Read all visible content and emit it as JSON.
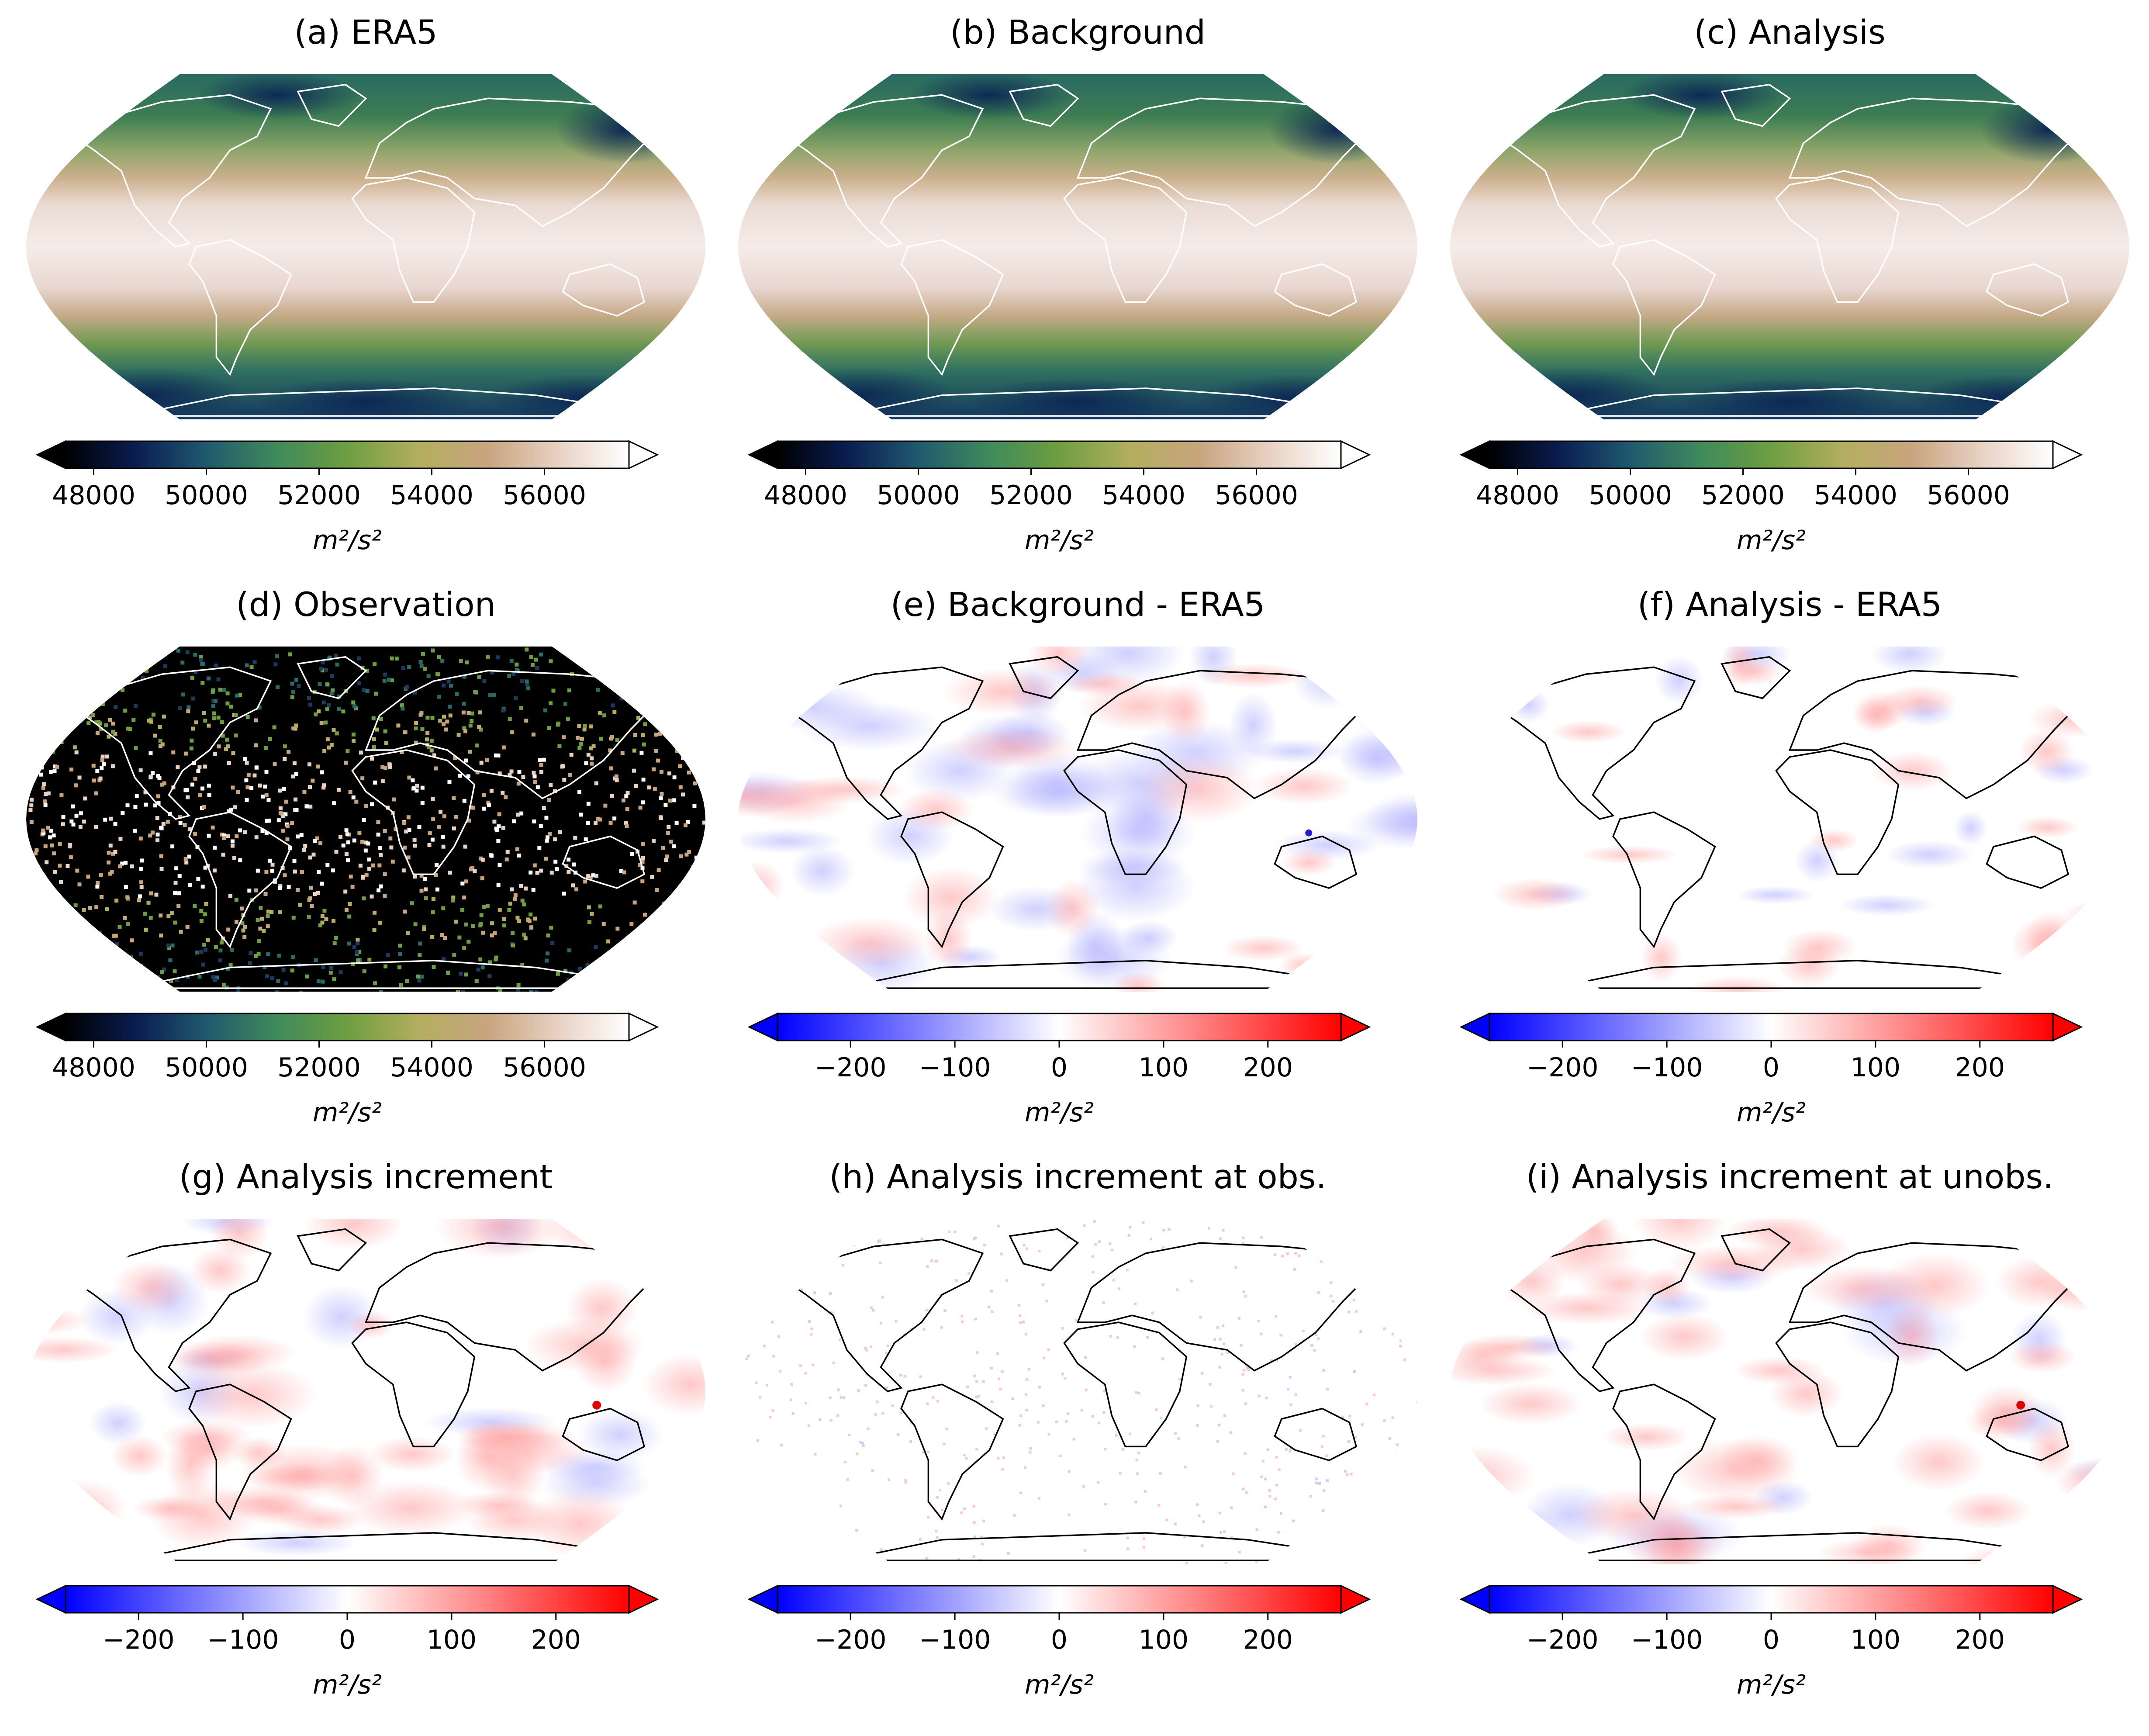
{
  "panels": [
    {
      "title": "(a) ERA5",
      "kind": "field",
      "scale": "gph"
    },
    {
      "title": "(b) Background",
      "kind": "field",
      "scale": "gph"
    },
    {
      "title": "(c) Analysis",
      "kind": "field",
      "scale": "gph"
    },
    {
      "title": "(d) Observation",
      "kind": "obs",
      "scale": "gph"
    },
    {
      "title": "(e) Background - ERA5",
      "kind": "diff_blue",
      "scale": "diff"
    },
    {
      "title": "(f) Analysis - ERA5",
      "kind": "diff_faint",
      "scale": "diff"
    },
    {
      "title": "(g) Analysis increment",
      "kind": "diff_red",
      "scale": "diff"
    },
    {
      "title": "(h) Analysis increment at obs.",
      "kind": "diff_sparse",
      "scale": "diff"
    },
    {
      "title": "(i) Analysis increment at unobs.",
      "kind": "diff_red",
      "scale": "diff"
    }
  ],
  "colorbars": {
    "gph": {
      "min": 47500,
      "max": 57500,
      "ticks": [
        48000,
        50000,
        52000,
        54000,
        56000
      ],
      "tick_labels": [
        "48000",
        "50000",
        "52000",
        "54000",
        "56000"
      ],
      "colors": [
        "#000000",
        "#0a1d52",
        "#20596e",
        "#3f8a5c",
        "#6e9e40",
        "#b2ae5e",
        "#c9a57f",
        "#e8d2c4",
        "#ffffff"
      ]
    },
    "diff": {
      "min": -270,
      "max": 270,
      "ticks": [
        -200,
        -100,
        0,
        100,
        200
      ],
      "tick_labels": [
        "−200",
        "−100",
        "0",
        "100",
        "200"
      ],
      "colors": [
        "#0000ff",
        "#ffffff",
        "#ff0000"
      ]
    }
  },
  "units": "m²/s²"
}
